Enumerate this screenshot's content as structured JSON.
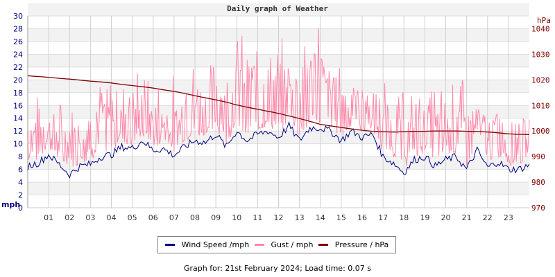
{
  "header": {
    "title": "Daily graph of Weather"
  },
  "legend": {
    "items": [
      {
        "label": "Wind Speed /mph",
        "color": "#000080"
      },
      {
        "label": "Gust / mph",
        "color": "#ff88aa"
      },
      {
        "label": "Pressure / hPa",
        "color": "#800000"
      }
    ]
  },
  "footer": {
    "text": "Graph for: 21st February 2024; Load time: 0.07 s"
  },
  "chart_data": {
    "type": "line",
    "title": "Daily graph of Weather",
    "xlabel": "",
    "ylabel": "mph",
    "y2label": "hPa",
    "ylim": [
      0,
      30
    ],
    "y2lim": [
      970,
      1045
    ],
    "grid": true,
    "legend_position": "bottom",
    "x_ticks": [
      "01",
      "02",
      "03",
      "04",
      "05",
      "06",
      "07",
      "08",
      "09",
      "10",
      "11",
      "12",
      "13",
      "14",
      "15",
      "16",
      "17",
      "18",
      "19",
      "20",
      "21",
      "22",
      "23"
    ],
    "y_ticks": [
      0,
      2,
      4,
      6,
      8,
      10,
      12,
      14,
      16,
      18,
      20,
      22,
      24,
      26,
      28,
      30
    ],
    "y2_ticks": [
      970,
      980,
      990,
      1000,
      1010,
      1020,
      1030,
      1040
    ],
    "x": [
      0,
      0.5,
      1,
      1.5,
      2,
      2.5,
      3,
      3.5,
      4,
      4.5,
      5,
      5.5,
      6,
      6.5,
      7,
      7.5,
      8,
      8.5,
      9,
      9.5,
      10,
      10.5,
      11,
      11.5,
      12,
      12.5,
      13,
      13.5,
      14,
      14.5,
      15,
      15.5,
      16,
      16.5,
      17,
      17.5,
      18,
      18.5,
      19,
      19.5,
      20,
      20.5,
      21,
      21.5,
      22,
      22.5,
      23,
      23.5,
      24
    ],
    "series": [
      {
        "name": "Wind Speed /mph",
        "axis": "left",
        "color": "#000080",
        "values": [
          6.5,
          7,
          8.3,
          6.8,
          5.2,
          6.5,
          6.8,
          8,
          8.3,
          9.5,
          9.3,
          10.5,
          9,
          9.2,
          8.2,
          9.5,
          10.5,
          10.2,
          11.5,
          9.5,
          12,
          10.5,
          11.5,
          12,
          11,
          12.8,
          10.5,
          12.5,
          12.5,
          12,
          10.5,
          12,
          11,
          11.5,
          8,
          7,
          5.5,
          7.5,
          8,
          6.5,
          7.5,
          8,
          6,
          9,
          6.3,
          7.2,
          6,
          6,
          6.7
        ]
      },
      {
        "name": "Gust / mph",
        "axis": "left",
        "color": "#ff88aa",
        "values": [
          11,
          13,
          12,
          11,
          9.5,
          11,
          12,
          13,
          14,
          15,
          14.5,
          15,
          13,
          13.5,
          12,
          15,
          16,
          17,
          18,
          17,
          20,
          19,
          21,
          19,
          18,
          20,
          19,
          21,
          22,
          18,
          17,
          16,
          16,
          14,
          12,
          12.5,
          11,
          13,
          12,
          13,
          12,
          13.5,
          12,
          13,
          11.5,
          12,
          11,
          12,
          11
        ],
        "peaks": [
          17.3,
          16.2,
          17.8,
          20,
          19.5,
          21.2,
          21.2,
          22.8,
          22.8,
          25.4,
          27.3,
          24.8,
          26.6,
          29.7,
          22.5,
          19.5,
          18.2,
          19.9,
          17.5,
          19,
          22.7,
          16,
          14
        ]
      },
      {
        "name": "Pressure / hPa",
        "axis": "right",
        "color": "#800000",
        "values": [
          1021.6,
          1021.3,
          1021,
          1020.6,
          1020.3,
          1019.9,
          1019.5,
          1019.2,
          1018.8,
          1018.2,
          1017.8,
          1017.3,
          1016.8,
          1016.1,
          1015.5,
          1014.7,
          1013.8,
          1013,
          1012.2,
          1011.3,
          1010.2,
          1009.3,
          1008.5,
          1007.7,
          1006.9,
          1005.9,
          1004.9,
          1003.8,
          1002.6,
          1002,
          1001.4,
          1000.8,
          1000.3,
          999.9,
          999.7,
          999.6,
          999.7,
          999.9,
          999.9,
          1000,
          1000,
          1000,
          999.9,
          999.8,
          999.6,
          999.3,
          998.9,
          998.7,
          998.6
        ]
      }
    ]
  }
}
